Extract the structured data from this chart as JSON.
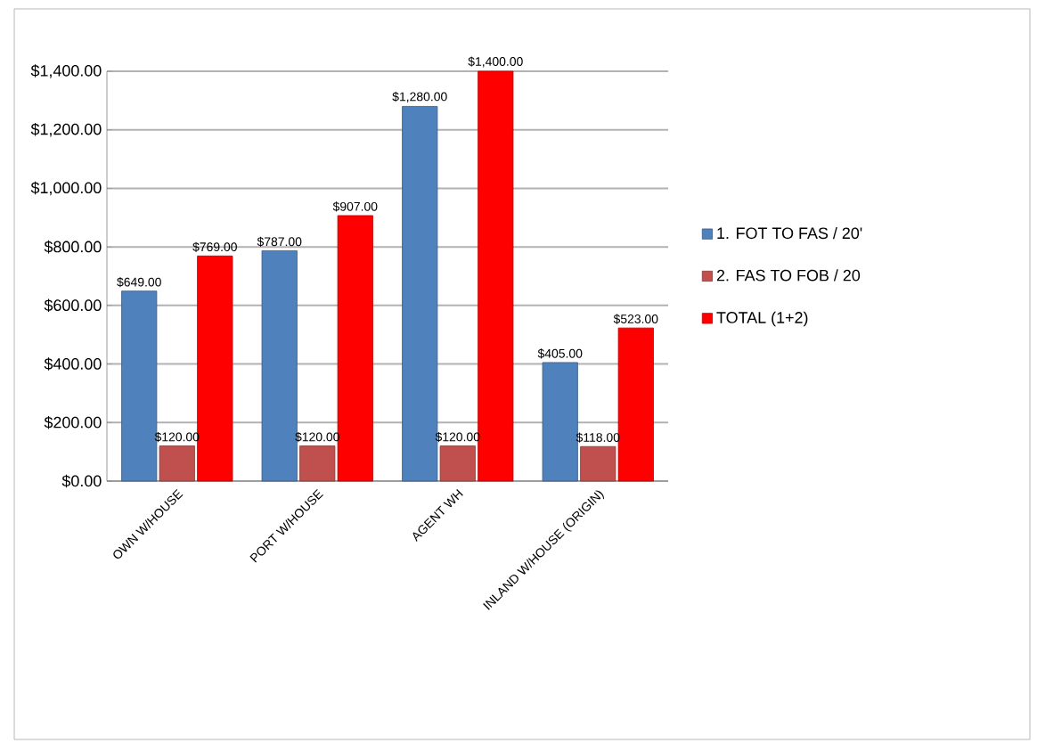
{
  "chart_data": {
    "type": "bar",
    "categories": [
      "OWN W/HOUSE",
      "PORT W/HOUSE",
      "AGENT WH",
      "INLAND W/HOUSE (ORIGIN)"
    ],
    "series": [
      {
        "name": "1. FOT TO FAS / 20'",
        "color": "#4f81bd",
        "values": [
          649,
          787,
          1280,
          405
        ],
        "value_labels": [
          "$649.00",
          "$787.00",
          "$1,280.00",
          "$405.00"
        ]
      },
      {
        "name": "2. FAS TO FOB / 20",
        "color": "#c0504d",
        "values": [
          120,
          120,
          120,
          118
        ],
        "value_labels": [
          "$120.00",
          "$120.00",
          "$120.00",
          "$118.00"
        ]
      },
      {
        "name": "TOTAL (1+2)",
        "color": "#ff0000",
        "values": [
          769,
          907,
          1400,
          523
        ],
        "value_labels": [
          "$769.00",
          "$907.00",
          "$1,400.00",
          "$523.00"
        ]
      }
    ],
    "ylim": [
      0,
      1400
    ],
    "yticks": [
      {
        "value": 0,
        "label": "$0.00"
      },
      {
        "value": 200,
        "label": "$200.00"
      },
      {
        "value": 400,
        "label": "$400.00"
      },
      {
        "value": 600,
        "label": "$600.00"
      },
      {
        "value": 800,
        "label": "$800.00"
      },
      {
        "value": 1000,
        "label": "$1,000.00"
      },
      {
        "value": 1200,
        "label": "$1,200.00"
      },
      {
        "value": 1400,
        "label": "$1,400.00"
      }
    ],
    "grid": "y",
    "legend": "right"
  }
}
